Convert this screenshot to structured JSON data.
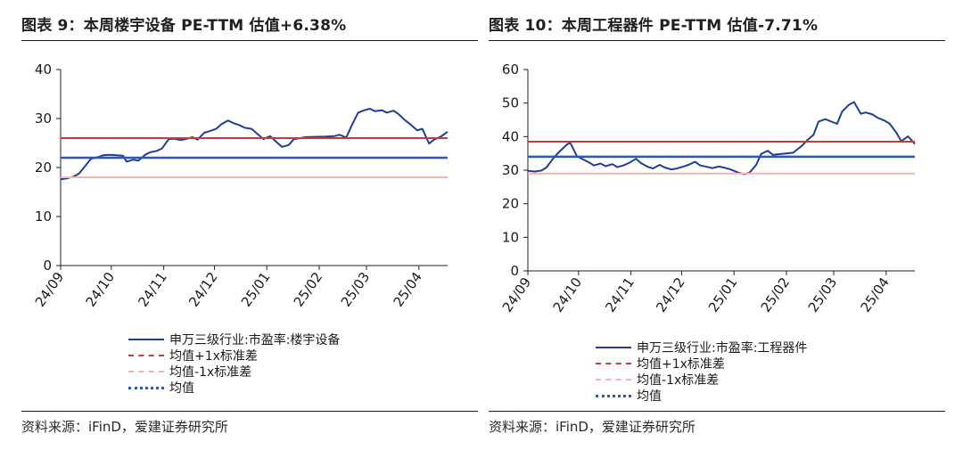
{
  "panels": [
    {
      "title": "图表 9：本周楼宇设备 PE-TTM 估值+6.38%",
      "source": "资料来源：iFinD，爱建证券研究所",
      "chart_data": {
        "type": "line",
        "ylim": [
          0,
          40
        ],
        "yticks": [
          0,
          10,
          20,
          30,
          40
        ],
        "xlim": [
          "2024-09-01",
          "2025-04-18"
        ],
        "xticks": [
          {
            "label": "24/09",
            "date": "2024-09-01"
          },
          {
            "label": "24/10",
            "date": "2024-10-01"
          },
          {
            "label": "24/11",
            "date": "2024-11-01"
          },
          {
            "label": "24/12",
            "date": "2024-12-01"
          },
          {
            "label": "25/01",
            "date": "2025-01-01"
          },
          {
            "label": "25/02",
            "date": "2025-02-01"
          },
          {
            "label": "25/03",
            "date": "2025-03-01"
          },
          {
            "label": "25/04",
            "date": "2025-04-01"
          }
        ],
        "series": [
          {
            "name": "申万三级行业:市盈率:楼宇设备",
            "style": "solid",
            "color": "#1f3f8f",
            "x": [
              "2024-09-01",
              "2024-09-05",
              "2024-09-09",
              "2024-09-12",
              "2024-09-16",
              "2024-09-19",
              "2024-09-24",
              "2024-09-26",
              "2024-09-30",
              "2024-10-08",
              "2024-10-10",
              "2024-10-14",
              "2024-10-17",
              "2024-10-21",
              "2024-10-24",
              "2024-10-28",
              "2024-10-31",
              "2024-11-04",
              "2024-11-07",
              "2024-11-11",
              "2024-11-14",
              "2024-11-18",
              "2024-11-21",
              "2024-11-25",
              "2024-11-28",
              "2024-12-02",
              "2024-12-05",
              "2024-12-09",
              "2024-12-12",
              "2024-12-16",
              "2024-12-19",
              "2024-12-23",
              "2024-12-26",
              "2024-12-30",
              "2025-01-03",
              "2025-01-07",
              "2025-01-10",
              "2025-01-14",
              "2025-01-17",
              "2025-01-21",
              "2025-01-24",
              "2025-02-05",
              "2025-02-10",
              "2025-02-13",
              "2025-02-17",
              "2025-02-20",
              "2025-02-24",
              "2025-02-27",
              "2025-03-03",
              "2025-03-06",
              "2025-03-10",
              "2025-03-13",
              "2025-03-17",
              "2025-03-20",
              "2025-03-24",
              "2025-03-27",
              "2025-03-31",
              "2025-04-03",
              "2025-04-07",
              "2025-04-10",
              "2025-04-14",
              "2025-04-18"
            ],
            "y": [
              17.6,
              17.8,
              18.2,
              18.8,
              20.5,
              21.8,
              22.2,
              22.5,
              22.6,
              22.4,
              21.2,
              21.6,
              21.4,
              22.6,
              23.1,
              23.4,
              23.9,
              25.8,
              25.9,
              25.6,
              25.8,
              26.2,
              25.7,
              27.1,
              27.4,
              27.9,
              28.8,
              29.6,
              29.1,
              28.6,
              28.1,
              27.9,
              27.0,
              25.8,
              26.4,
              25.1,
              24.2,
              24.6,
              25.8,
              26.0,
              26.2,
              26.3,
              26.4,
              26.7,
              26.1,
              28.4,
              31.2,
              31.6,
              32.0,
              31.5,
              31.7,
              31.2,
              31.6,
              30.9,
              29.6,
              28.8,
              27.6,
              27.9,
              24.9,
              25.7,
              26.3,
              27.3
            ]
          },
          {
            "name": "均值+1x标准差",
            "style": "dashed",
            "color": "#c43c3c",
            "constant": 26.0
          },
          {
            "name": "均值-1x标准差",
            "style": "dashed",
            "color": "#f3b3b3",
            "constant": 18.0
          },
          {
            "name": "均值",
            "style": "dotted",
            "color": "#2a56c4",
            "constant": 22.0
          }
        ]
      }
    },
    {
      "title": "图表 10：本周工程器件 PE-TTM 估值-7.71%",
      "source": "资料来源：iFinD，爱建证券研究所",
      "chart_data": {
        "type": "line",
        "ylim": [
          0,
          60
        ],
        "yticks": [
          0,
          10,
          20,
          30,
          40,
          50,
          60
        ],
        "xlim": [
          "2024-09-01",
          "2025-04-18"
        ],
        "xticks": [
          {
            "label": "24/09",
            "date": "2024-09-01"
          },
          {
            "label": "24/10",
            "date": "2024-10-01"
          },
          {
            "label": "24/11",
            "date": "2024-11-01"
          },
          {
            "label": "24/12",
            "date": "2024-12-01"
          },
          {
            "label": "25/01",
            "date": "2025-01-01"
          },
          {
            "label": "25/02",
            "date": "2025-02-01"
          },
          {
            "label": "25/03",
            "date": "2025-03-01"
          },
          {
            "label": "25/04",
            "date": "2025-04-01"
          }
        ],
        "series": [
          {
            "name": "申万三级行业:市盈率:工程器件",
            "style": "solid",
            "color": "#1f3f8f",
            "x": [
              "2024-09-01",
              "2024-09-05",
              "2024-09-09",
              "2024-09-12",
              "2024-09-16",
              "2024-09-19",
              "2024-09-24",
              "2024-09-26",
              "2024-09-30",
              "2024-10-08",
              "2024-10-10",
              "2024-10-14",
              "2024-10-17",
              "2024-10-21",
              "2024-10-24",
              "2024-10-28",
              "2024-10-31",
              "2024-11-04",
              "2024-11-07",
              "2024-11-11",
              "2024-11-14",
              "2024-11-18",
              "2024-11-21",
              "2024-11-25",
              "2024-11-28",
              "2024-12-02",
              "2024-12-05",
              "2024-12-09",
              "2024-12-12",
              "2024-12-16",
              "2024-12-19",
              "2024-12-23",
              "2024-12-26",
              "2024-12-30",
              "2025-01-03",
              "2025-01-07",
              "2025-01-10",
              "2025-01-14",
              "2025-01-17",
              "2025-01-21",
              "2025-01-24",
              "2025-02-05",
              "2025-02-10",
              "2025-02-13",
              "2025-02-17",
              "2025-02-20",
              "2025-02-24",
              "2025-02-27",
              "2025-03-03",
              "2025-03-06",
              "2025-03-10",
              "2025-03-13",
              "2025-03-17",
              "2025-03-20",
              "2025-03-24",
              "2025-03-27",
              "2025-03-31",
              "2025-04-03",
              "2025-04-07",
              "2025-04-10",
              "2025-04-14",
              "2025-04-18"
            ],
            "y": [
              29.8,
              29.6,
              29.9,
              30.8,
              33.5,
              35.2,
              37.6,
              38.2,
              34.2,
              32.1,
              31.4,
              32.0,
              31.2,
              31.8,
              30.9,
              31.5,
              32.2,
              33.4,
              32.1,
              31.0,
              30.5,
              31.6,
              30.8,
              30.2,
              30.5,
              31.1,
              31.6,
              32.5,
              31.4,
              31.0,
              30.6,
              31.1,
              30.8,
              30.2,
              29.4,
              28.8,
              29.2,
              31.5,
              34.8,
              35.8,
              34.6,
              35.2,
              37.2,
              38.8,
              40.5,
              44.5,
              45.2,
              44.6,
              43.8,
              47.5,
              49.5,
              50.3,
              46.8,
              47.2,
              46.6,
              45.6,
              44.8,
              43.9,
              41.2,
              38.6,
              40.1,
              37.8
            ]
          },
          {
            "name": "均值+1x标准差",
            "style": "dashed",
            "color": "#c43c3c",
            "constant": 38.5
          },
          {
            "name": "均值-1x标准差",
            "style": "dashed",
            "color": "#f3b3b3",
            "constant": 29.0
          },
          {
            "name": "均值",
            "style": "dotted",
            "color": "#2a56c4",
            "constant": 34.0
          }
        ]
      }
    }
  ]
}
